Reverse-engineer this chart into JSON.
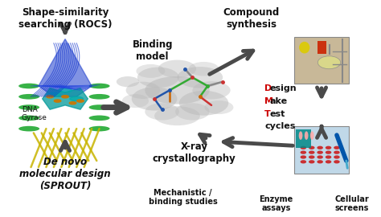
{
  "bg_color": "#ffffff",
  "labels": {
    "shape_similarity": "Shape-similarity\nsearching (ROCS)",
    "binding_model": "Binding\nmodel",
    "compound_synthesis": "Compound\nsynthesis",
    "dna_gyrase": "DNA\nGyrase",
    "de_novo": "De novo\nmolecular design\n(SPROUT)",
    "xray": "X-ray\ncrystallography",
    "mechanistic": "Mechanistic /\nbinding studies",
    "enzyme": "Enzyme\nassays",
    "cellular": "Cellular\nscreens"
  },
  "dmt_lines": [
    {
      "letter": "D",
      "rest": "esign",
      "color_letter": "#cc0000"
    },
    {
      "letter": "M",
      "rest": "ake",
      "color_letter": "#cc0000"
    },
    {
      "letter": "T",
      "rest": "est",
      "color_letter": "#cc0000"
    },
    {
      "letter": "",
      "rest": "cycles",
      "color_letter": "#000000"
    }
  ],
  "fs_title": 8.5,
  "fs_small": 7.0,
  "fs_dmt": 8.0,
  "arrow_color": "#4a4a4a",
  "arrow_lw": 3.5,
  "arrow_ms": 20
}
